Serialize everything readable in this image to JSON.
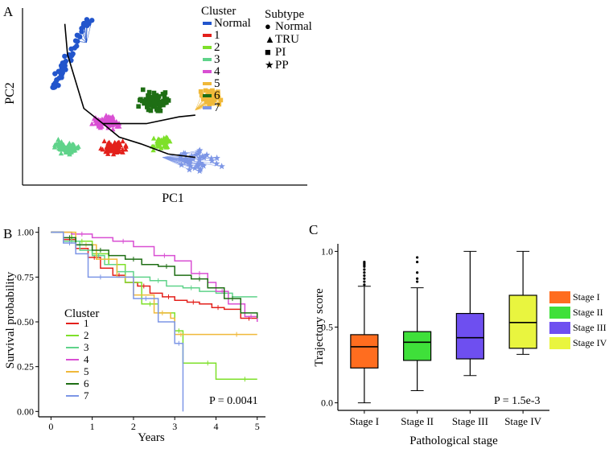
{
  "colors": {
    "normal": "#2255cc",
    "c1": "#e3201b",
    "c2": "#7ee02a",
    "c3": "#5fd38a",
    "c4": "#d94fd3",
    "c5": "#f0b93a",
    "c6": "#1e6e14",
    "c7": "#7d96e6",
    "stage1": "#ff6d1f",
    "stage2": "#3fe03a",
    "stage3": "#6e4ff0",
    "stage4": "#e9f53f"
  },
  "panels": {
    "a": "A",
    "b": "B",
    "c": "C"
  },
  "chart_data": [
    {
      "type": "scatter",
      "panel": "A",
      "xlabel": "PC1",
      "ylabel": "PC2",
      "legend_cluster_title": "Cluster",
      "legend_cluster": [
        "Normal",
        "1",
        "2",
        "3",
        "4",
        "5",
        "6",
        "7"
      ],
      "legend_subtype_title": "Subtype",
      "legend_subtype": [
        {
          "symbol": "●",
          "label": "Normal"
        },
        {
          "symbol": "▲",
          "label": "TRU"
        },
        {
          "symbol": "■",
          "label": "PI"
        },
        {
          "symbol": "★",
          "label": "PP"
        }
      ],
      "series": [
        {
          "name": "Normal",
          "shape": "circle",
          "center": [
            0.15,
            0.82
          ],
          "spread": [
            0.06,
            0.18
          ],
          "n": 60
        },
        {
          "name": "1",
          "shape": "triangle",
          "center": [
            0.3,
            0.2
          ],
          "spread": [
            0.06,
            0.05
          ],
          "n": 70
        },
        {
          "name": "2",
          "shape": "triangle",
          "center": [
            0.48,
            0.22
          ],
          "spread": [
            0.05,
            0.06
          ],
          "n": 40
        },
        {
          "name": "3",
          "shape": "triangle",
          "center": [
            0.13,
            0.2
          ],
          "spread": [
            0.06,
            0.05
          ],
          "n": 80
        },
        {
          "name": "4",
          "shape": "triangle",
          "center": [
            0.27,
            0.35
          ],
          "spread": [
            0.07,
            0.05
          ],
          "n": 80
        },
        {
          "name": "5",
          "shape": "square",
          "center": [
            0.66,
            0.5
          ],
          "spread": [
            0.06,
            0.08
          ],
          "n": 40
        },
        {
          "name": "6",
          "shape": "square",
          "center": [
            0.45,
            0.47
          ],
          "spread": [
            0.07,
            0.08
          ],
          "n": 70
        },
        {
          "name": "7",
          "shape": "star",
          "center": [
            0.6,
            0.12
          ],
          "spread": [
            0.12,
            0.08
          ],
          "n": 40
        }
      ],
      "trajectory": [
        [
          0.12,
          0.93
        ],
        [
          0.13,
          0.75
        ],
        [
          0.19,
          0.43
        ],
        [
          0.26,
          0.34
        ],
        [
          0.42,
          0.34
        ],
        [
          0.54,
          0.38
        ],
        [
          0.6,
          0.39
        ]
      ],
      "trajectory2": [
        [
          0.26,
          0.34
        ],
        [
          0.32,
          0.26
        ],
        [
          0.4,
          0.22
        ],
        [
          0.5,
          0.16
        ],
        [
          0.6,
          0.14
        ]
      ]
    },
    {
      "type": "line",
      "panel": "B",
      "xlabel": "Years",
      "ylabel": "Survival probability",
      "xlim": [
        -0.3,
        5.2
      ],
      "ylim": [
        -0.03,
        1.03
      ],
      "xticks": [
        0,
        1,
        2,
        3,
        4,
        5
      ],
      "yticks": [
        0,
        0.25,
        0.5,
        0.75,
        1
      ],
      "ytick_labels": [
        "0.00",
        "0.25",
        "0.50",
        "0.75",
        "1.00"
      ],
      "legend_title": "Cluster",
      "annotation": "P = 0.0041",
      "series": [
        {
          "name": "1",
          "x": [
            0,
            0.3,
            0.6,
            0.9,
            1.2,
            1.5,
            1.8,
            2.1,
            2.4,
            2.7,
            3.0,
            3.3,
            3.6,
            3.9,
            4.2,
            4.6,
            5.0
          ],
          "y": [
            1,
            0.96,
            0.91,
            0.86,
            0.8,
            0.76,
            0.72,
            0.7,
            0.66,
            0.64,
            0.62,
            0.61,
            0.6,
            0.58,
            0.57,
            0.52,
            0.51
          ]
        },
        {
          "name": "2",
          "x": [
            0,
            0.5,
            1.0,
            1.4,
            1.8,
            2.2,
            2.6,
            3.0,
            3.2,
            3.6,
            4.0,
            4.4,
            5.0
          ],
          "y": [
            1,
            0.95,
            0.88,
            0.82,
            0.72,
            0.6,
            0.55,
            0.45,
            0.27,
            0.27,
            0.18,
            0.18,
            0.18
          ]
        },
        {
          "name": "3",
          "x": [
            0,
            0.3,
            0.7,
            1.0,
            1.3,
            1.6,
            2.0,
            2.4,
            2.8,
            3.2,
            3.6,
            4.0,
            4.4,
            5.0
          ],
          "y": [
            1,
            0.95,
            0.9,
            0.87,
            0.82,
            0.78,
            0.75,
            0.73,
            0.7,
            0.69,
            0.67,
            0.66,
            0.64,
            0.64
          ]
        },
        {
          "name": "4",
          "x": [
            0,
            0.5,
            1.0,
            1.5,
            2.0,
            2.5,
            3.0,
            3.4,
            3.8,
            4.0,
            4.3,
            4.7,
            5.0
          ],
          "y": [
            1,
            0.99,
            0.97,
            0.95,
            0.92,
            0.87,
            0.84,
            0.77,
            0.72,
            0.67,
            0.6,
            0.53,
            0.5
          ]
        },
        {
          "name": "5",
          "x": [
            0,
            0.6,
            1.1,
            1.6,
            2.0,
            2.5,
            2.9,
            3.0,
            3.3,
            4.0,
            5.0
          ],
          "y": [
            1,
            0.93,
            0.85,
            0.75,
            0.65,
            0.55,
            0.52,
            0.43,
            0.43,
            0.43,
            0.43
          ]
        },
        {
          "name": "6",
          "x": [
            0,
            0.3,
            0.6,
            1.0,
            1.4,
            1.8,
            2.2,
            2.6,
            3.0,
            3.4,
            3.8,
            4.2,
            4.6,
            5.0
          ],
          "y": [
            1,
            0.97,
            0.93,
            0.9,
            0.87,
            0.85,
            0.82,
            0.81,
            0.76,
            0.74,
            0.69,
            0.63,
            0.55,
            0.52
          ]
        },
        {
          "name": "7",
          "x": [
            0,
            0.3,
            0.6,
            0.9,
            1.5,
            2.0,
            2.6,
            3.0,
            3.2,
            3.2
          ],
          "y": [
            1,
            0.94,
            0.88,
            0.75,
            0.75,
            0.63,
            0.5,
            0.38,
            0.25,
            0.0
          ]
        }
      ]
    },
    {
      "type": "box",
      "panel": "C",
      "xlabel": "Pathological stage",
      "ylabel": "Trajectory score",
      "ylim": [
        -0.05,
        1.05
      ],
      "yticks": [
        0,
        0.5,
        1
      ],
      "ytick_labels": [
        "0.0",
        "0.5",
        "1.0"
      ],
      "categories": [
        "Stage I",
        "Stage II",
        "Stage III",
        "Stage IV"
      ],
      "boxes": [
        {
          "q1": 0.23,
          "median": 0.37,
          "q3": 0.45,
          "whisker_low": 0.0,
          "whisker_high": 0.77,
          "outliers": [
            0.78,
            0.8,
            0.82,
            0.84,
            0.86,
            0.88,
            0.9,
            0.91,
            0.92,
            0.93
          ]
        },
        {
          "q1": 0.28,
          "median": 0.4,
          "q3": 0.47,
          "whisker_low": 0.08,
          "whisker_high": 0.76,
          "outliers": [
            0.8,
            0.82,
            0.86,
            0.93,
            0.96
          ]
        },
        {
          "q1": 0.29,
          "median": 0.43,
          "q3": 0.59,
          "whisker_low": 0.18,
          "whisker_high": 1.0,
          "outliers": []
        },
        {
          "q1": 0.36,
          "median": 0.53,
          "q3": 0.71,
          "whisker_low": 0.32,
          "whisker_high": 1.0,
          "outliers": []
        }
      ],
      "legend": [
        "Stage I",
        "Stage II",
        "Stage III",
        "Stage IV"
      ],
      "annotation": "P = 1.5e-3"
    }
  ]
}
